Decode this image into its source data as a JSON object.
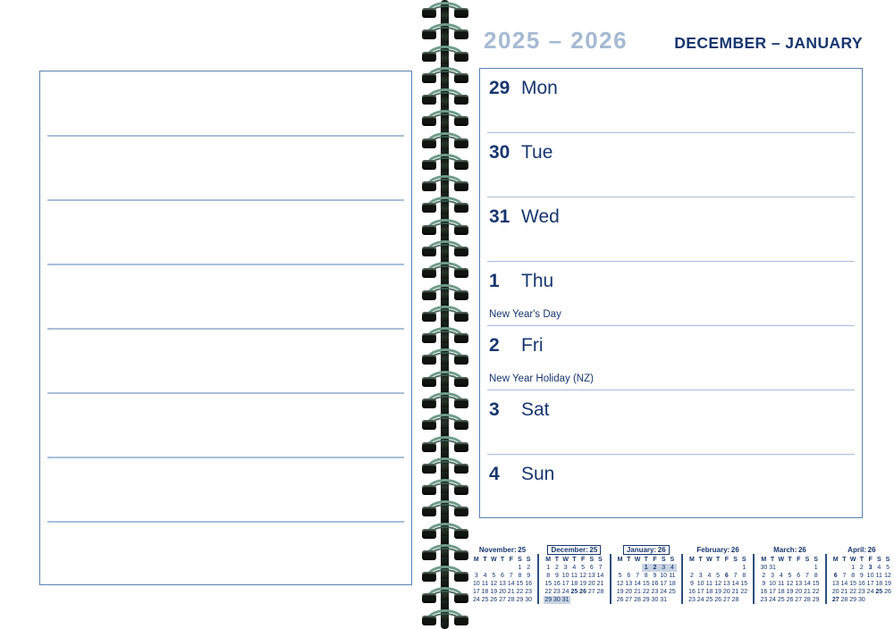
{
  "header": {
    "years": "2025 – 2026",
    "months": "DECEMBER – JANUARY"
  },
  "week": {
    "days": [
      {
        "num": "29",
        "name": "Mon",
        "note": ""
      },
      {
        "num": "30",
        "name": "Tue",
        "note": ""
      },
      {
        "num": "31",
        "name": "Wed",
        "note": ""
      },
      {
        "num": "1",
        "name": "Thu",
        "note": "New Year's Day"
      },
      {
        "num": "2",
        "name": "Fri",
        "note": "New Year Holiday (NZ)"
      },
      {
        "num": "3",
        "name": "Sat",
        "note": ""
      },
      {
        "num": "4",
        "name": "Sun",
        "note": ""
      }
    ]
  },
  "mini_calendars": {
    "weekday_header": [
      "M",
      "T",
      "W",
      "T",
      "F",
      "S",
      "S"
    ],
    "calendars": [
      {
        "month": "November:",
        "year": "25",
        "boxed": false,
        "rows": [
          [
            "",
            "",
            "",
            "",
            "",
            "1",
            "2"
          ],
          [
            "3",
            "4",
            "5",
            "6",
            "7",
            "8",
            "9"
          ],
          [
            "10",
            "11",
            "12",
            "13",
            "14",
            "15",
            "16"
          ],
          [
            "17",
            "18",
            "19",
            "20",
            "21",
            "22",
            "23"
          ],
          [
            "24",
            "25",
            "26",
            "27",
            "28",
            "29",
            "30"
          ]
        ],
        "bold": [],
        "highlight": []
      },
      {
        "month": "December:",
        "year": "25",
        "boxed": true,
        "rows": [
          [
            "1",
            "2",
            "3",
            "4",
            "5",
            "6",
            "7"
          ],
          [
            "8",
            "9",
            "10",
            "11",
            "12",
            "13",
            "14"
          ],
          [
            "15",
            "16",
            "17",
            "18",
            "19",
            "20",
            "21"
          ],
          [
            "22",
            "23",
            "24",
            "25",
            "26",
            "27",
            "28"
          ],
          [
            "29",
            "30",
            "31",
            "",
            "",
            "",
            ""
          ]
        ],
        "bold": [
          "25",
          "26"
        ],
        "highlight": [
          "29",
          "30",
          "31"
        ]
      },
      {
        "month": "January:",
        "year": "26",
        "boxed": true,
        "rows": [
          [
            "",
            "",
            "",
            "1",
            "2",
            "3",
            "4"
          ],
          [
            "5",
            "6",
            "7",
            "8",
            "9",
            "10",
            "11"
          ],
          [
            "12",
            "13",
            "14",
            "15",
            "16",
            "17",
            "18"
          ],
          [
            "19",
            "20",
            "21",
            "22",
            "23",
            "24",
            "25"
          ],
          [
            "26",
            "27",
            "28",
            "29",
            "30",
            "31",
            ""
          ]
        ],
        "bold": [
          "1",
          "2"
        ],
        "highlight": [
          "1",
          "2",
          "3",
          "4"
        ]
      },
      {
        "month": "February:",
        "year": "26",
        "boxed": false,
        "rows": [
          [
            "",
            "",
            "",
            "",
            "",
            "",
            "1"
          ],
          [
            "2",
            "3",
            "4",
            "5",
            "6",
            "7",
            "8"
          ],
          [
            "9",
            "10",
            "11",
            "12",
            "13",
            "14",
            "15"
          ],
          [
            "16",
            "17",
            "18",
            "19",
            "20",
            "21",
            "22"
          ],
          [
            "23",
            "24",
            "25",
            "26",
            "27",
            "28",
            ""
          ]
        ],
        "bold": [
          "6"
        ],
        "highlight": []
      },
      {
        "month": "March:",
        "year": "26",
        "boxed": false,
        "rows": [
          [
            "30",
            "31",
            "",
            "",
            "",
            "",
            "1"
          ],
          [
            "2",
            "3",
            "4",
            "5",
            "6",
            "7",
            "8"
          ],
          [
            "9",
            "10",
            "11",
            "12",
            "13",
            "14",
            "15"
          ],
          [
            "16",
            "17",
            "18",
            "19",
            "20",
            "21",
            "22"
          ],
          [
            "23",
            "24",
            "25",
            "26",
            "27",
            "28",
            "29"
          ]
        ],
        "bold": [],
        "highlight": []
      },
      {
        "month": "April:",
        "year": "26",
        "boxed": false,
        "rows": [
          [
            "",
            "",
            "1",
            "2",
            "3",
            "4",
            "5"
          ],
          [
            "6",
            "7",
            "8",
            "9",
            "10",
            "11",
            "12"
          ],
          [
            "13",
            "14",
            "15",
            "16",
            "17",
            "18",
            "19"
          ],
          [
            "20",
            "21",
            "22",
            "23",
            "24",
            "25",
            "26"
          ],
          [
            "27",
            "28",
            "29",
            "30",
            "",
            "",
            ""
          ]
        ],
        "bold": [
          "3",
          "6",
          "25",
          "27"
        ],
        "highlight": []
      }
    ]
  },
  "colors": {
    "navy": "#17366E",
    "year_blue": "#A6BAD2",
    "box_border": "#5B82B2",
    "rule_line": "#A9BFD9",
    "week_highlight": "#C8D3E2",
    "spiral_dark": "#10150F",
    "spiral_wire": "#6F9C8A"
  }
}
